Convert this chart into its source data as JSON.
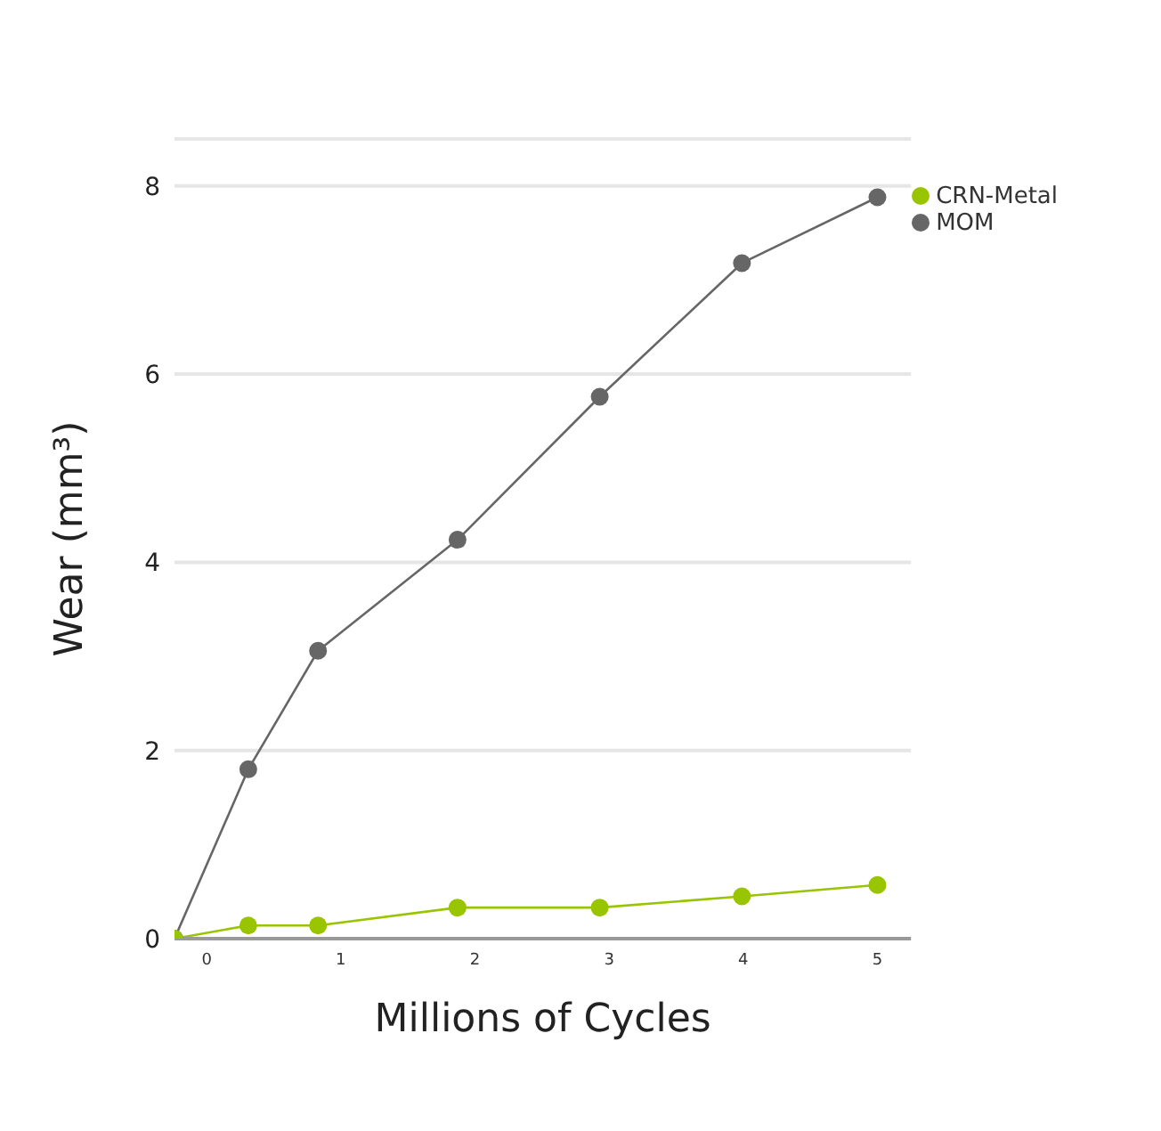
{
  "chart_data": {
    "type": "line",
    "xlabel": "Millions of Cycles",
    "ylabel": "Wear (mm³)",
    "x": [
      -0.24,
      0.31,
      0.83,
      1.87,
      2.93,
      3.99,
      5.0
    ],
    "series": [
      {
        "name": "MOM",
        "color": "#666666",
        "values": [
          0,
          1.8,
          3.06,
          4.24,
          5.76,
          7.18,
          7.88
        ]
      },
      {
        "name": "CRN-Metal",
        "color": "#99c400",
        "values": [
          0,
          0.14,
          0.14,
          0.33,
          0.33,
          0.45,
          0.57
        ]
      }
    ],
    "xlim": [
      -0.24,
      5.25
    ],
    "xticks": [
      0,
      1,
      2,
      3,
      4,
      5
    ],
    "ylim": [
      0,
      8.5
    ],
    "yticks": [
      0,
      2,
      4,
      6,
      8
    ],
    "grid": "y",
    "legend": "top right",
    "marker": "circle",
    "line_style": "solid"
  }
}
